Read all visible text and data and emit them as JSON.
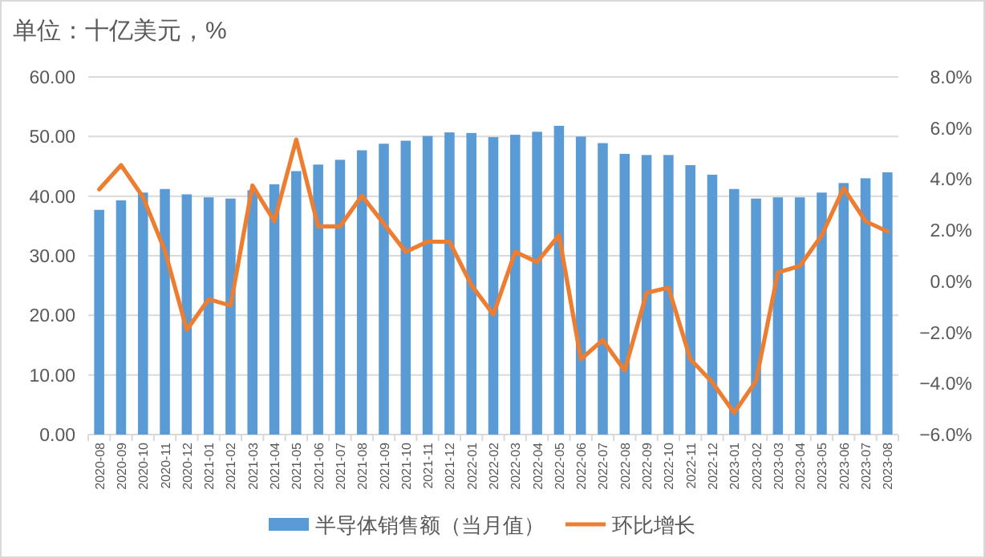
{
  "chart_data": {
    "type": "bar",
    "title": "单位：十亿美元，%",
    "categories": [
      "2020-08",
      "2020-09",
      "2020-10",
      "2020-11",
      "2020-12",
      "2021-01",
      "2021-02",
      "2021-03",
      "2021-04",
      "2021-05",
      "2021-06",
      "2021-07",
      "2021-08",
      "2021-09",
      "2021-10",
      "2021-11",
      "2021-12",
      "2022-01",
      "2022-02",
      "2022-03",
      "2022-04",
      "2022-05",
      "2022-06",
      "2022-07",
      "2022-08",
      "2022-09",
      "2022-10",
      "2022-11",
      "2022-12",
      "2023-01",
      "2023-02",
      "2023-03",
      "2023-04",
      "2023-05",
      "2023-06",
      "2023-07",
      "2023-08"
    ],
    "series": [
      {
        "name": "半导体销售额（当月值）",
        "type": "bar",
        "color": "#5b9bd5",
        "values": [
          37.7,
          39.3,
          40.6,
          41.2,
          40.3,
          39.8,
          39.6,
          41.0,
          42.0,
          44.2,
          45.3,
          46.1,
          47.7,
          48.8,
          49.3,
          50.1,
          50.7,
          50.6,
          49.9,
          50.3,
          50.8,
          51.8,
          50.0,
          48.9,
          47.1,
          46.9,
          46.9,
          45.2,
          43.6,
          41.2,
          39.6,
          39.8,
          39.8,
          40.6,
          42.2,
          43.0,
          44.0
        ]
      },
      {
        "name": "环比增长",
        "type": "line",
        "axis": "y2",
        "color": "#ed7d31",
        "values": [
          3.6,
          4.55,
          3.3,
          1.2,
          -1.9,
          -0.7,
          -0.95,
          3.75,
          2.35,
          5.55,
          2.15,
          2.15,
          3.35,
          2.25,
          1.15,
          1.55,
          1.55,
          -0.15,
          -1.3,
          1.15,
          0.75,
          1.8,
          -3.05,
          -2.3,
          -3.5,
          -0.45,
          -0.25,
          -3.05,
          -3.95,
          -5.15,
          -3.9,
          0.35,
          0.6,
          1.8,
          3.65,
          2.35,
          1.95
        ]
      }
    ],
    "ylim": [
      0,
      60
    ],
    "yticks": [
      {
        "value": 0,
        "label": "0.00"
      },
      {
        "value": 10,
        "label": "10.00"
      },
      {
        "value": 20,
        "label": "20.00"
      },
      {
        "value": 30,
        "label": "30.00"
      },
      {
        "value": 40,
        "label": "40.00"
      },
      {
        "value": 50,
        "label": "50.00"
      },
      {
        "value": 60,
        "label": "60.00"
      }
    ],
    "y2lim": [
      -6,
      8
    ],
    "y2ticks": [
      {
        "value": -6,
        "label": "−6.0%"
      },
      {
        "value": -4,
        "label": "−4.0%"
      },
      {
        "value": -2,
        "label": "−2.0%"
      },
      {
        "value": 0,
        "label": "0.0%"
      },
      {
        "value": 2,
        "label": "2.0%"
      },
      {
        "value": 4,
        "label": "4.0%"
      },
      {
        "value": 6,
        "label": "6.0%"
      },
      {
        "value": 8,
        "label": "8.0%"
      }
    ],
    "grid": "y",
    "legend": "bottom"
  }
}
